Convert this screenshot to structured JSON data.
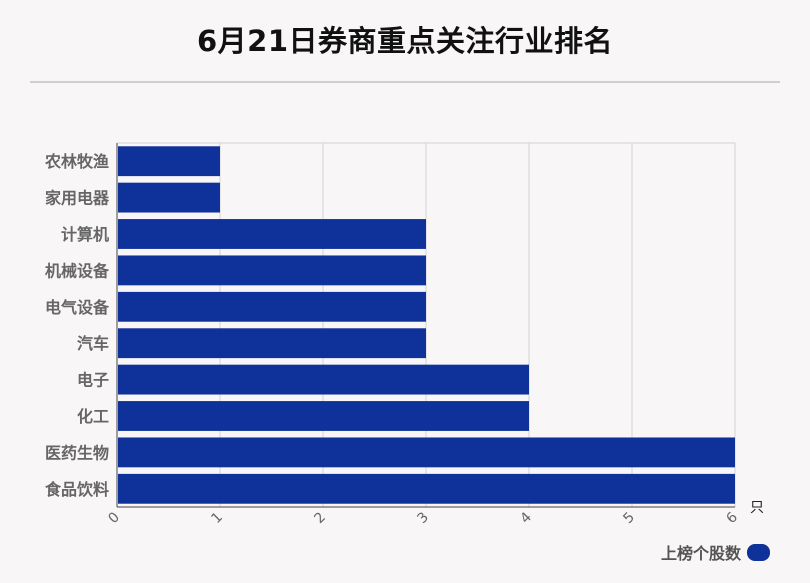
{
  "title": "6月21日券商重点关注行业排名",
  "chart_data": {
    "type": "bar",
    "orientation": "horizontal",
    "categories": [
      "农林牧渔",
      "家用电器",
      "计算机",
      "机械设备",
      "电气设备",
      "汽车",
      "电子",
      "化工",
      "医药生物",
      "食品饮料"
    ],
    "series": [
      {
        "name": "上榜个股数",
        "values": [
          1,
          1,
          3,
          3,
          3,
          3,
          4,
          4,
          6,
          6
        ]
      }
    ],
    "xlim": [
      0,
      6
    ],
    "x_ticks": [
      "0",
      "1",
      "2",
      "3",
      "4",
      "5",
      "6"
    ],
    "x_unit": "只",
    "grid": true,
    "legend_position": "bottom-right",
    "bar_color": "#0f319a"
  }
}
